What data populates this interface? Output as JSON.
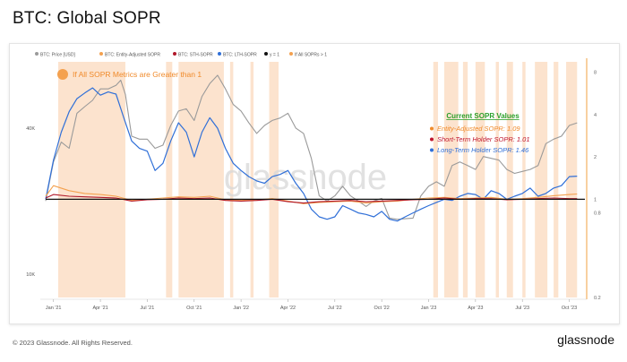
{
  "page": {
    "title": "BTC: Global SOPR",
    "copyright": "© 2023 Glassnode. All Rights Reserved.",
    "brand": "glassnode",
    "watermark": "glassnode"
  },
  "legend": [
    {
      "label": "BTC: Price [USD]",
      "color": "#9a9a9a"
    },
    {
      "label": "BTC: Entity-Adjusted SOPR",
      "color": "#f4a14f"
    },
    {
      "label": "BTC: STH-SOPR",
      "color": "#b0182a"
    },
    {
      "label": "BTC: LTH-SOPR",
      "color": "#2f6fd8"
    },
    {
      "label": "y = 1",
      "color": "#111111"
    },
    {
      "label": "If All SOPRs > 1",
      "color": "#f4a14f"
    }
  ],
  "annotation": {
    "highlight_label": "If All SOPR Metrics are Greater than 1",
    "box_title": "Current SOPR Values",
    "rows": [
      {
        "text": "Entity-Adjusted SOPR: 1.09",
        "color": "#f08a2a"
      },
      {
        "text": "Short-Term Holder SOPR: 1.01",
        "color": "#c0162e"
      },
      {
        "text": "Long-Term Holder SOPR: 1.46",
        "color": "#2f6fd8"
      }
    ],
    "title_color": "#2ca02c"
  },
  "chart_data": {
    "type": "line",
    "title": "BTC: Global SOPR",
    "x_ticks": [
      "Jan '21",
      "Apr '21",
      "Jul '21",
      "Oct '21",
      "Jan '22",
      "Apr '22",
      "Jul '22",
      "Oct '22",
      "Jan '23",
      "Apr '23",
      "Jul '23",
      "Oct '23"
    ],
    "y_left_ticks": [
      "40K",
      "10K"
    ],
    "y_left_scale": "log",
    "y_right_ticks": [
      "8",
      "4",
      "2",
      "1",
      "0.8",
      "0.2"
    ],
    "y_right_scale": "log",
    "x_month_range": [
      -0.5,
      34
    ],
    "price": {
      "name": "BTC: Price [USD]",
      "color": "#9a9a9a",
      "x_month": [
        -0.5,
        0,
        0.5,
        1,
        1.5,
        2,
        2.5,
        3,
        3.5,
        4,
        4.3,
        4.6,
        5,
        5.5,
        6,
        6.5,
        7,
        7.5,
        8,
        8.5,
        9,
        9.5,
        10,
        10.5,
        11,
        11.5,
        12,
        12.5,
        13,
        13.5,
        14,
        14.5,
        15,
        15.5,
        16,
        16.5,
        17,
        17.5,
        18,
        18.5,
        19,
        19.5,
        20,
        20.5,
        21,
        21.5,
        22,
        22.5,
        23,
        23.5,
        24,
        24.5,
        25,
        25.5,
        26,
        26.5,
        27,
        27.5,
        28,
        28.5,
        29,
        29.5,
        30,
        30.5,
        31,
        31.5,
        32,
        32.5,
        33,
        33.5
      ],
      "values": [
        20000,
        29000,
        35000,
        33000,
        46000,
        49000,
        52000,
        58000,
        58000,
        60000,
        63000,
        55000,
        37000,
        36000,
        36000,
        33000,
        34000,
        41000,
        47000,
        48000,
        43000,
        54000,
        61000,
        66000,
        58000,
        50000,
        47000,
        42000,
        38000,
        41000,
        43000,
        44000,
        46000,
        40000,
        38000,
        30000,
        21000,
        20000,
        21000,
        23000,
        21000,
        20000,
        19000,
        20000,
        20500,
        17000,
        16800,
        16900,
        17000,
        21000,
        23000,
        24000,
        23000,
        28000,
        29000,
        28000,
        27000,
        30500,
        30000,
        29500,
        27000,
        26000,
        26500,
        27000,
        28000,
        34500,
        36000,
        37000,
        41000,
        42000
      ]
    },
    "lth_sopr": {
      "name": "BTC: LTH-SOPR",
      "color": "#2f6fd8",
      "x_month": [
        -0.5,
        0,
        0.5,
        1,
        1.5,
        2,
        2.5,
        3,
        3.5,
        4,
        4.5,
        5,
        5.5,
        6,
        6.5,
        7,
        7.5,
        8,
        8.5,
        9,
        9.5,
        10,
        10.5,
        11,
        11.5,
        12,
        12.5,
        13,
        13.5,
        14,
        14.5,
        15,
        15.5,
        16,
        16.5,
        17,
        17.5,
        18,
        18.5,
        19,
        19.5,
        20,
        20.5,
        21,
        21.5,
        22,
        22.5,
        23,
        23.5,
        24,
        24.5,
        25,
        25.5,
        26,
        26.5,
        27,
        27.5,
        28,
        28.5,
        29,
        29.5,
        30,
        30.5,
        31,
        31.5,
        32,
        32.5,
        33,
        33.5
      ],
      "values": [
        1.0,
        1.9,
        3.0,
        4.2,
        5.2,
        5.7,
        6.2,
        5.5,
        5.8,
        5.6,
        3.8,
        2.6,
        2.3,
        2.2,
        1.6,
        1.8,
        2.6,
        3.5,
        3.0,
        2.0,
        3.0,
        3.8,
        3.2,
        2.3,
        1.8,
        1.6,
        1.45,
        1.35,
        1.3,
        1.45,
        1.5,
        1.6,
        1.3,
        1.1,
        0.85,
        0.75,
        0.72,
        0.75,
        0.9,
        0.85,
        0.8,
        0.78,
        0.75,
        0.82,
        0.72,
        0.7,
        0.75,
        0.8,
        0.85,
        0.9,
        0.95,
        1.0,
        0.98,
        1.05,
        1.1,
        1.08,
        1.0,
        1.15,
        1.1,
        1.0,
        1.05,
        1.1,
        1.2,
        1.05,
        1.1,
        1.2,
        1.25,
        1.45,
        1.46
      ]
    },
    "entity_adjusted_sopr": {
      "name": "BTC: Entity-Adjusted SOPR",
      "color": "#f4a14f",
      "x_month": [
        -0.5,
        0,
        1,
        2,
        3,
        4,
        5,
        6,
        7,
        8,
        9,
        10,
        11,
        12,
        13,
        14,
        15,
        16,
        17,
        18,
        19,
        20,
        21,
        22,
        23,
        24,
        25,
        26,
        27,
        28,
        29,
        30,
        31,
        32,
        33,
        33.5
      ],
      "values": [
        1.05,
        1.25,
        1.15,
        1.1,
        1.08,
        1.05,
        0.98,
        1.0,
        1.02,
        1.04,
        1.03,
        1.05,
        0.99,
        0.98,
        0.99,
        1.01,
        0.97,
        0.93,
        0.95,
        0.96,
        0.97,
        0.94,
        0.96,
        0.97,
        1.0,
        1.02,
        1.03,
        1.01,
        1.02,
        1.03,
        1.0,
        1.01,
        1.03,
        1.06,
        1.08,
        1.09
      ]
    },
    "sth_sopr": {
      "name": "BTC: STH-SOPR",
      "color": "#b0182a",
      "x_month": [
        -0.5,
        0,
        1,
        2,
        3,
        4,
        5,
        6,
        7,
        8,
        9,
        10,
        11,
        12,
        13,
        14,
        15,
        16,
        17,
        18,
        19,
        20,
        21,
        22,
        23,
        24,
        25,
        26,
        27,
        28,
        29,
        30,
        31,
        32,
        33,
        33.5
      ],
      "values": [
        1.02,
        1.08,
        1.05,
        1.04,
        1.03,
        1.02,
        0.97,
        0.99,
        1.0,
        1.02,
        1.01,
        1.02,
        0.98,
        0.97,
        0.98,
        1.0,
        0.96,
        0.94,
        0.96,
        0.97,
        0.98,
        0.96,
        0.97,
        0.98,
        0.99,
        1.0,
        1.02,
        1.0,
        1.01,
        1.01,
        0.99,
        1.0,
        1.01,
        1.02,
        1.01,
        1.01
      ]
    },
    "y_equals_one": {
      "name": "y = 1",
      "value": 1
    },
    "all_sopr_gt_one_spans_month": [
      [
        0.3,
        4.6
      ],
      [
        7.2,
        7.6
      ],
      [
        8.0,
        10.9
      ],
      [
        11.3,
        11.5
      ],
      [
        12.6,
        12.8
      ],
      [
        13.8,
        14.4
      ],
      [
        24.3,
        24.6
      ],
      [
        25.0,
        25.9
      ],
      [
        26.2,
        26.5
      ],
      [
        27.0,
        27.6
      ],
      [
        28.3,
        28.5
      ],
      [
        29.0,
        29.4
      ],
      [
        30.0,
        30.2
      ],
      [
        30.8,
        31.6
      ],
      [
        32.0,
        32.3
      ],
      [
        32.8,
        33.5
      ]
    ]
  }
}
